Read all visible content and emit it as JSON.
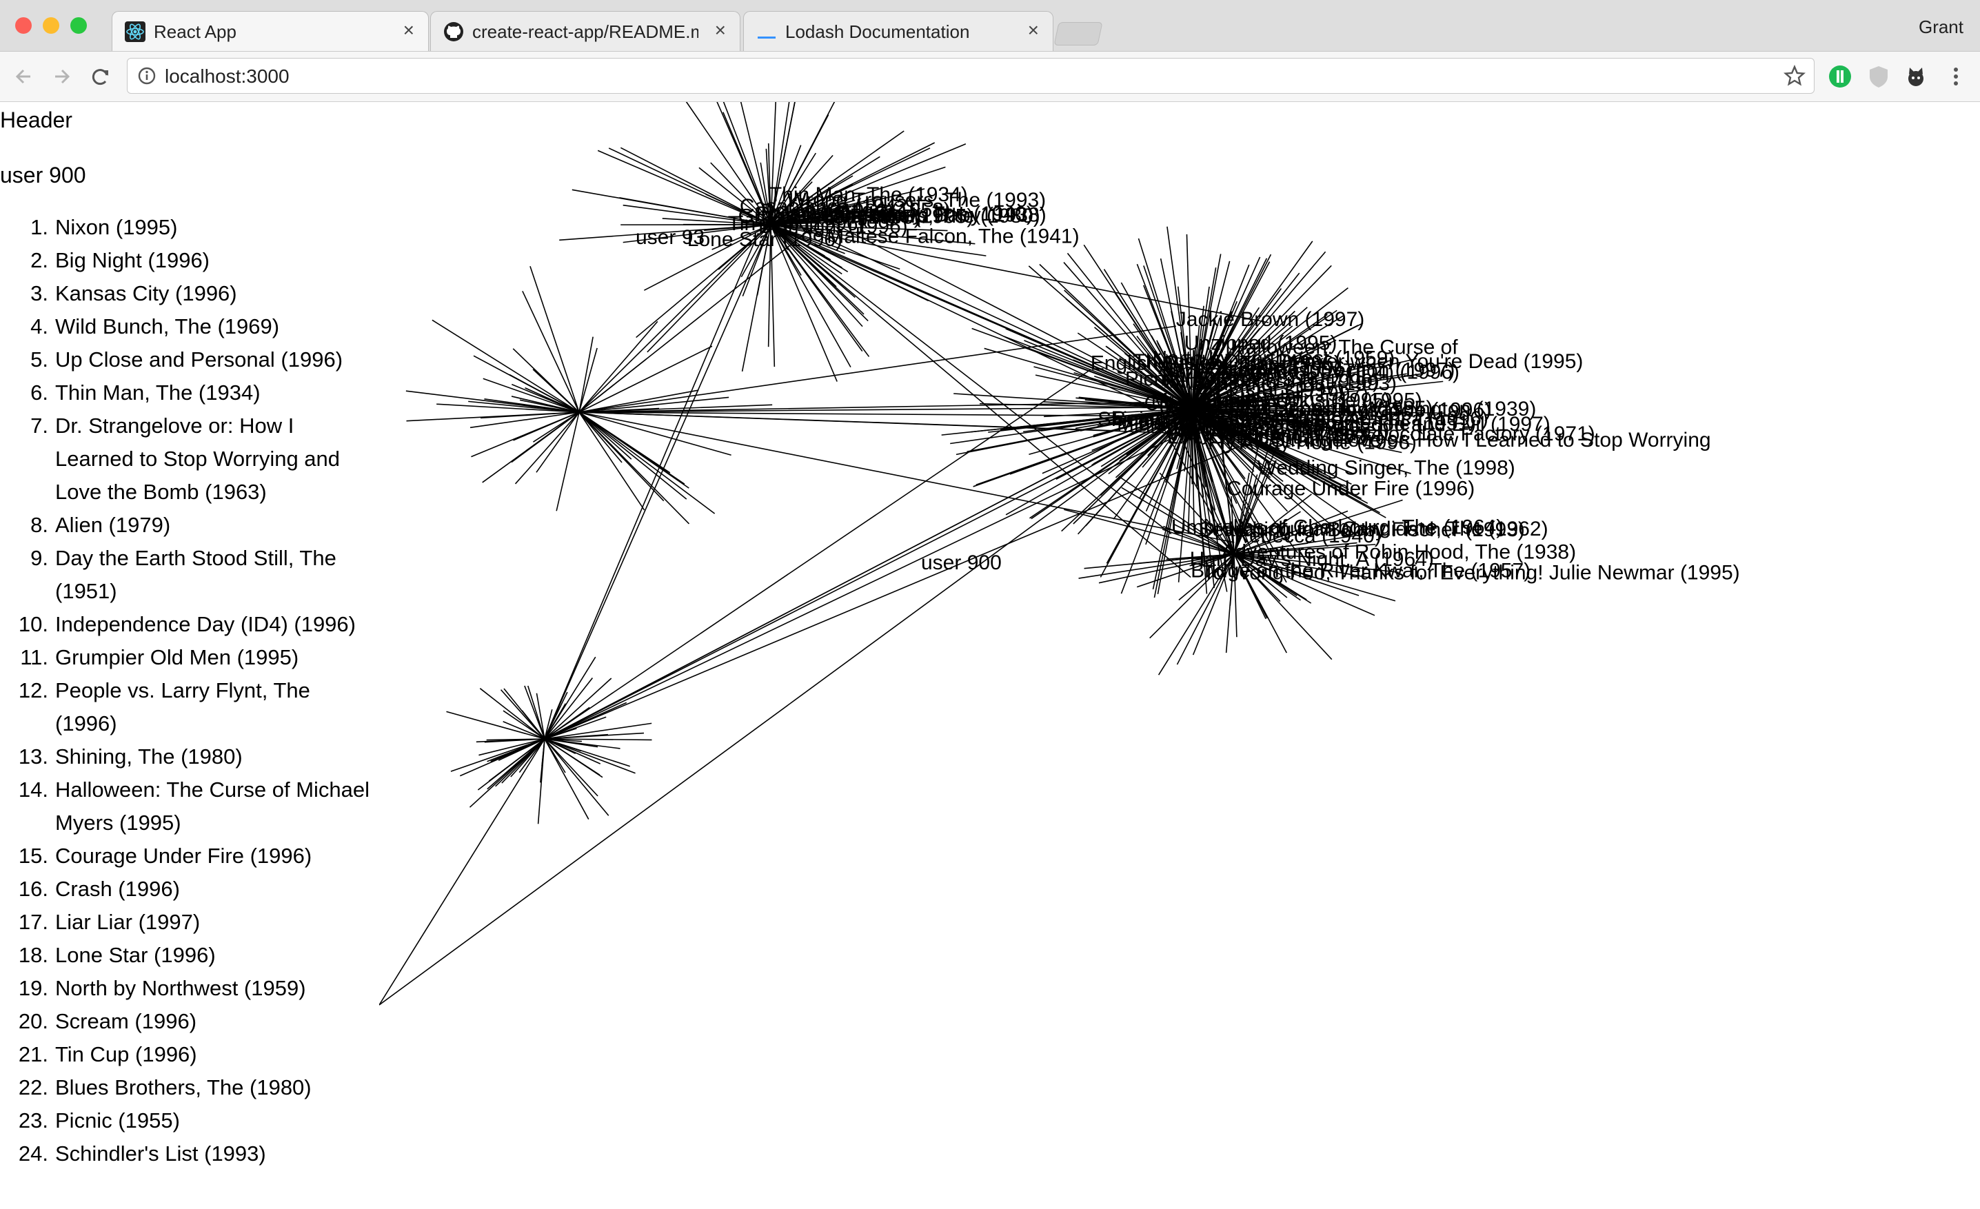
{
  "browser": {
    "tabs": [
      {
        "title": "React App",
        "favicon": "react-icon",
        "active": true
      },
      {
        "title": "create-react-app/README.md",
        "favicon": "github-icon",
        "active": false
      },
      {
        "title": "Lodash Documentation",
        "favicon": "lodash-icon",
        "active": false
      }
    ],
    "profile_name": "Grant",
    "url": "localhost:3000",
    "icons": [
      "back-icon",
      "forward-icon",
      "reload-icon",
      "info-icon",
      "bookmark-star-icon",
      "extension-green-icon",
      "extension-shield-icon",
      "extension-cat-icon",
      "menu-icon"
    ]
  },
  "page": {
    "header": "Header",
    "user_title": "user 900",
    "movies": [
      "Nixon (1995)",
      "Big Night (1996)",
      "Kansas City (1996)",
      "Wild Bunch, The (1969)",
      "Up Close and Personal (1996)",
      "Thin Man, The (1934)",
      "Dr. Strangelove or: How I Learned to Stop Worrying and Love the Bomb (1963)",
      "Alien (1979)",
      "Day the Earth Stood Still, The (1951)",
      "Independence Day (ID4) (1996)",
      "Grumpier Old Men (1995)",
      "People vs. Larry Flynt, The (1996)",
      "Shining, The (1980)",
      "Halloween: The Curse of Michael Myers (1995)",
      "Courage Under Fire (1996)",
      "Crash (1996)",
      "Liar Liar (1997)",
      "Lone Star (1996)",
      "North by Northwest (1959)",
      "Scream (1996)",
      "Tin Cup (1996)",
      "Blues Brothers, The (1980)",
      "Picnic (1955)",
      "Schindler's List (1993)"
    ]
  },
  "graph": {
    "user_nodes": [
      "user 93",
      "user 900"
    ],
    "node_labels": [
      "Miller's Crossing (1990)",
      "Jungle Book, The (1995)",
      "Independence Day (ID4) (1996)",
      "Willy Wonka and the Chocolate Factory (1971)",
      "Twister (1996)",
      "Very Brady Sequel, A (1996)",
      "Mr. Holland's Opus (1995)",
      "Sense and Sensibility (1995)",
      "Scream (1996)",
      "Beavis and Butt-head Do America (1996)",
      "Faithful (1996)",
      "Fargo (1996)",
      "Courage Under Fire (1996)",
      "Halloween: The Curse of",
      "Air Force One (1997)",
      "Crash (1996)",
      "Liar Liar (1997)",
      "Bean (1997)",
      "Alien: Resurrection (1997)",
      "Midnight in the Garden of Good and Evil (1997)",
      "Things to Do in Denver when You're Dead (1995)",
      "Jackie Brown (1997)",
      "Amistad (1997)",
      "L.A. Confidential (1997)",
      "In & Out (1997)",
      "English Patient, The (1996)",
      "G.I. Jane (1997)",
      "Fly Away Home (1996)",
      "Cats & Dogs, The (1996)",
      "Wedding Singer, The (1998)",
      "Mr. Smith Goes to Washington (1939)",
      "Dr. Strangelove or: How I Learned to Stop Worrying",
      "Day the Earth Stood Still, The (1951)",
      "North by Northwest (1959)",
      "Schindler's List (1993)",
      "Wild Bunch, The (1969)",
      "Kansas City (1996)",
      "Picnic (1955)",
      "Shining, The (1980)",
      "Unzipped (1995)",
      "Wrong Trousers, The (1993)",
      "Philadelphia Story, The (1940)",
      "Maltese Falcon, The (1941)",
      "Lone Star (1996)",
      "Tin Cup (1996)",
      "Blues Brothers, The (1980)",
      "Nixon (1995)",
      "Big Night (1996)",
      "Grumpier Old Men (1995)",
      "Bringing Up Baby (1938)",
      "Thin Man, The (1934)",
      "Vertigo (1958)",
      "Casablanca (1942)",
      "Psycho (1960)",
      "Searching for Bobby Fischer (1993)",
      "Bridge on the River Kwai, The (1957)",
      "To Wong Foo, Thanks for Everything! Julie Newmar (1995)",
      "Rebecca (1940)",
      "Adventures of Robin Hood, The (1938)",
      "Manchurian Candidate, The (1962)",
      "Hard Day's Night, A (1964)",
      "Umbrellas of Cherbourg, The (1964)"
    ]
  }
}
